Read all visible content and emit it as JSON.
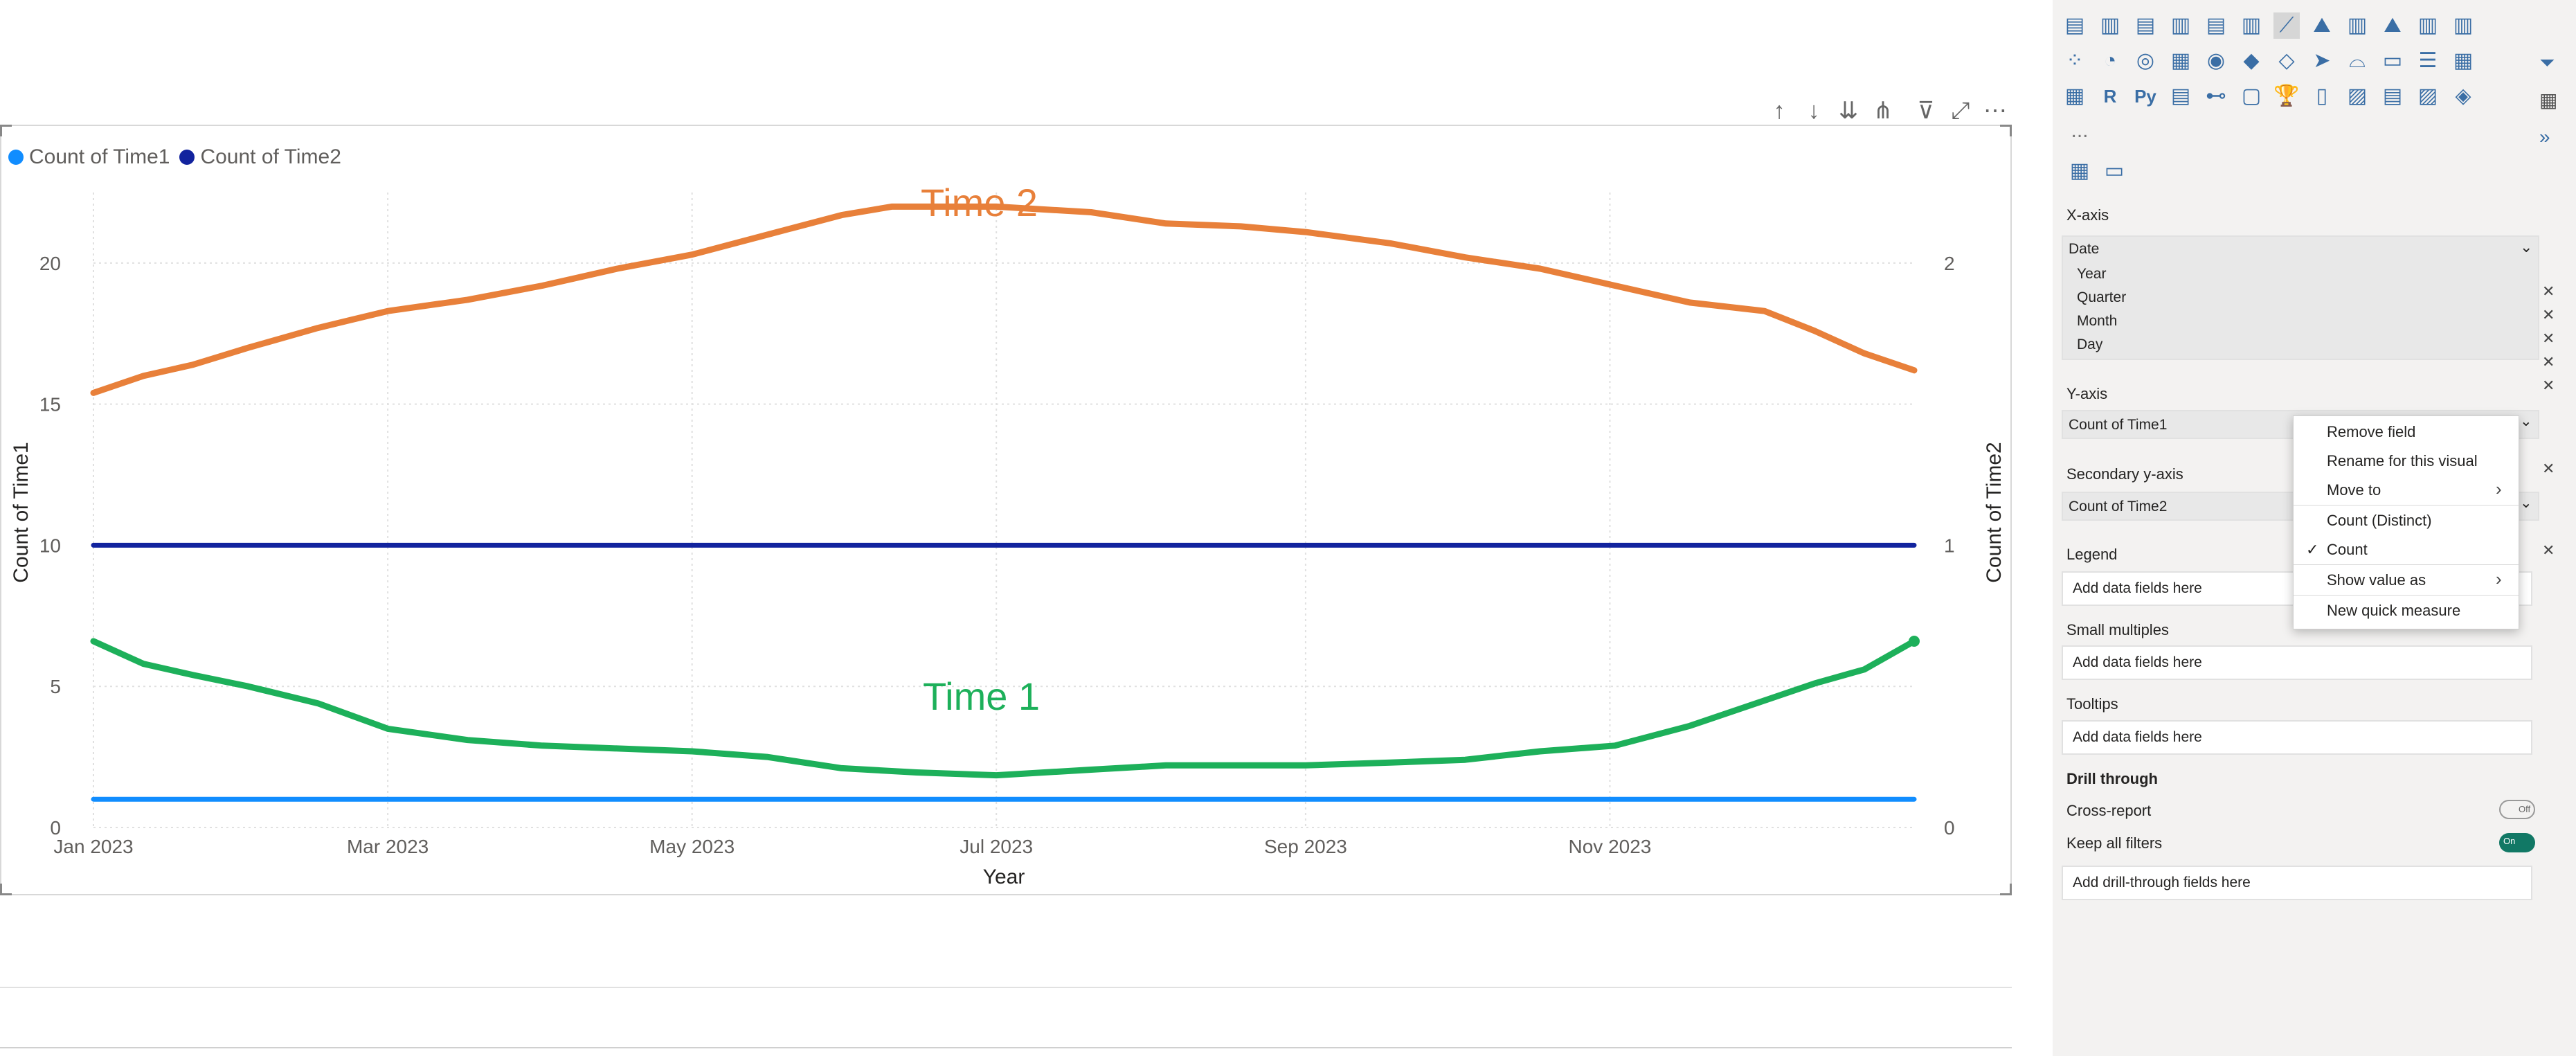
{
  "chart": {
    "legend": [
      {
        "label": "Count of Time1",
        "color": "#118dff"
      },
      {
        "label": "Count of Time2",
        "color": "#12239e"
      }
    ],
    "annotation_time2": "Time 2",
    "annotation_time1": "Time 1",
    "xlabel": "Year",
    "ylabel_left": "Count of Time1",
    "ylabel_right": "Count of Time2",
    "toolbar_icons": [
      "arrow-up-icon",
      "arrow-down-icon",
      "double-arrow-down-icon",
      "fork-icon",
      "filter-icon",
      "focus-mode-icon",
      "more-options-icon"
    ]
  },
  "chart_data": {
    "type": "line",
    "xlabel": "Year",
    "ylabel": "Count of Time1",
    "y2label": "Count of Time2",
    "x_ticks": [
      "Jan 2023",
      "Mar 2023",
      "May 2023",
      "Jul 2023",
      "Sep 2023",
      "Nov 2023"
    ],
    "y_ticks": [
      "0",
      "5",
      "10",
      "15",
      "20"
    ],
    "y2_ticks": [
      "0",
      "1",
      "2"
    ],
    "ylim": [
      0,
      22.5
    ],
    "y2lim": [
      0,
      2.25
    ],
    "series": [
      {
        "name": "Count of Time1",
        "axis": "left",
        "color": "#118dff",
        "values": [
          [
            0,
            1
          ],
          [
            365,
            1
          ]
        ]
      },
      {
        "name": "Count of Time2",
        "axis": "right",
        "color": "#12239e",
        "values": [
          [
            0,
            1
          ],
          [
            365,
            1
          ]
        ]
      },
      {
        "name": "Time 2",
        "axis": "left",
        "color": "#e8803a",
        "values": [
          [
            0,
            15.4
          ],
          [
            10,
            16
          ],
          [
            20,
            16.4
          ],
          [
            31,
            17
          ],
          [
            45,
            17.7
          ],
          [
            59,
            18.3
          ],
          [
            75,
            18.7
          ],
          [
            90,
            19.2
          ],
          [
            105,
            19.8
          ],
          [
            120,
            20.3
          ],
          [
            135,
            21
          ],
          [
            150,
            21.7
          ],
          [
            160,
            22
          ],
          [
            181,
            22
          ],
          [
            200,
            21.8
          ],
          [
            215,
            21.4
          ],
          [
            230,
            21.3
          ],
          [
            243,
            21.1
          ],
          [
            260,
            20.7
          ],
          [
            275,
            20.2
          ],
          [
            290,
            19.8
          ],
          [
            305,
            19.2
          ],
          [
            320,
            18.6
          ],
          [
            335,
            18.3
          ],
          [
            345,
            17.6
          ],
          [
            355,
            16.8
          ],
          [
            365,
            16.2
          ]
        ]
      },
      {
        "name": "Time 1",
        "axis": "left",
        "color": "#1db05a",
        "values": [
          [
            0,
            6.6
          ],
          [
            10,
            5.8
          ],
          [
            20,
            5.4
          ],
          [
            31,
            5
          ],
          [
            45,
            4.4
          ],
          [
            59,
            3.5
          ],
          [
            75,
            3.1
          ],
          [
            90,
            2.9
          ],
          [
            105,
            2.8
          ],
          [
            120,
            2.7
          ],
          [
            135,
            2.5
          ],
          [
            150,
            2.1
          ],
          [
            165,
            1.95
          ],
          [
            181,
            1.85
          ],
          [
            200,
            2.05
          ],
          [
            215,
            2.2
          ],
          [
            230,
            2.2
          ],
          [
            243,
            2.2
          ],
          [
            260,
            2.3
          ],
          [
            275,
            2.4
          ],
          [
            290,
            2.7
          ],
          [
            305,
            2.9
          ],
          [
            320,
            3.6
          ],
          [
            335,
            4.5
          ],
          [
            345,
            5.1
          ],
          [
            355,
            5.6
          ],
          [
            365,
            6.6
          ]
        ]
      }
    ]
  },
  "pane": {
    "xaxis_title": "X-axis",
    "date_label": "Date",
    "date_children": [
      "Year",
      "Quarter",
      "Month",
      "Day"
    ],
    "yaxis_title": "Y-axis",
    "yaxis_field": "Count of Time1",
    "secondary_title": "Secondary y-axis",
    "secondary_field": "Count of Time2",
    "legend_title": "Legend",
    "legend_placeholder": "Add data fields here",
    "small_title": "Small multiples",
    "small_placeholder": "Add data fields here",
    "tooltips_title": "Tooltips",
    "tooltips_placeholder": "Add data fields here",
    "drill_title": "Drill through",
    "cross_report": "Cross-report",
    "cross_toggle": "Off",
    "keep_filters": "Keep all filters",
    "keep_toggle": "On",
    "drill_placeholder": "Add drill-through fields here",
    "more_label": "...",
    "python_label": "Py",
    "r_label": "R"
  },
  "context_menu": {
    "items": [
      "Remove field",
      "Rename for this visual",
      "Move to",
      "Count (Distinct)",
      "Count",
      "Show value as",
      "New quick measure"
    ],
    "checked": "Count"
  }
}
